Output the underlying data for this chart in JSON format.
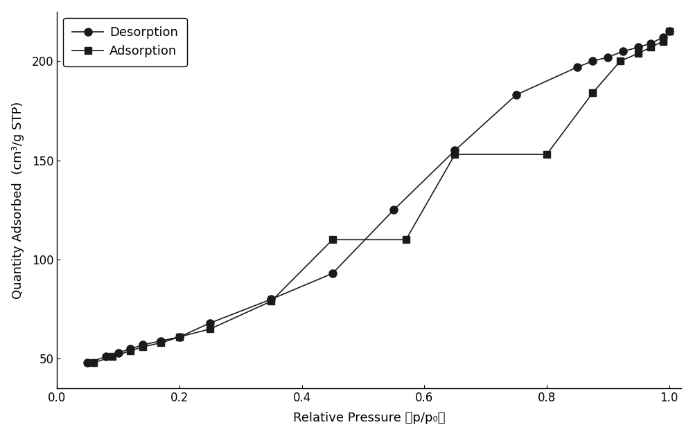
{
  "desorption_x": [
    0.05,
    0.08,
    0.1,
    0.12,
    0.14,
    0.17,
    0.2,
    0.25,
    0.35,
    0.45,
    0.55,
    0.65,
    0.75,
    0.85,
    0.875,
    0.9,
    0.925,
    0.95,
    0.97,
    0.99,
    1.0
  ],
  "desorption_y": [
    48,
    51,
    53,
    55,
    57,
    59,
    61,
    68,
    80,
    93,
    125,
    155,
    183,
    197,
    200,
    202,
    205,
    207,
    209,
    212,
    215
  ],
  "adsorption_x": [
    0.06,
    0.09,
    0.12,
    0.14,
    0.17,
    0.2,
    0.25,
    0.35,
    0.45,
    0.57,
    0.65,
    0.8,
    0.875,
    0.92,
    0.95,
    0.97,
    0.99,
    1.0
  ],
  "adsorption_y": [
    48,
    51,
    54,
    56,
    58,
    61,
    65,
    79,
    110,
    110,
    153,
    153,
    184,
    200,
    204,
    207,
    210,
    215
  ],
  "xlabel": "Relative Pressure （p/p₀）",
  "ylabel": "Quantity Adsorbed  (cm³/g STP)",
  "xlim": [
    0.0,
    1.02
  ],
  "ylim": [
    35,
    225
  ],
  "yticks": [
    50,
    100,
    150,
    200
  ],
  "xticks": [
    0.0,
    0.2,
    0.4,
    0.6,
    0.8,
    1.0
  ],
  "legend_desorption": "Desorption",
  "legend_adsorption": "Adsorption",
  "line_color": "#1a1a1a",
  "marker_color": "#1a1a1a",
  "background_color": "#ffffff",
  "figsize": [
    10.0,
    6.3
  ],
  "dpi": 100
}
